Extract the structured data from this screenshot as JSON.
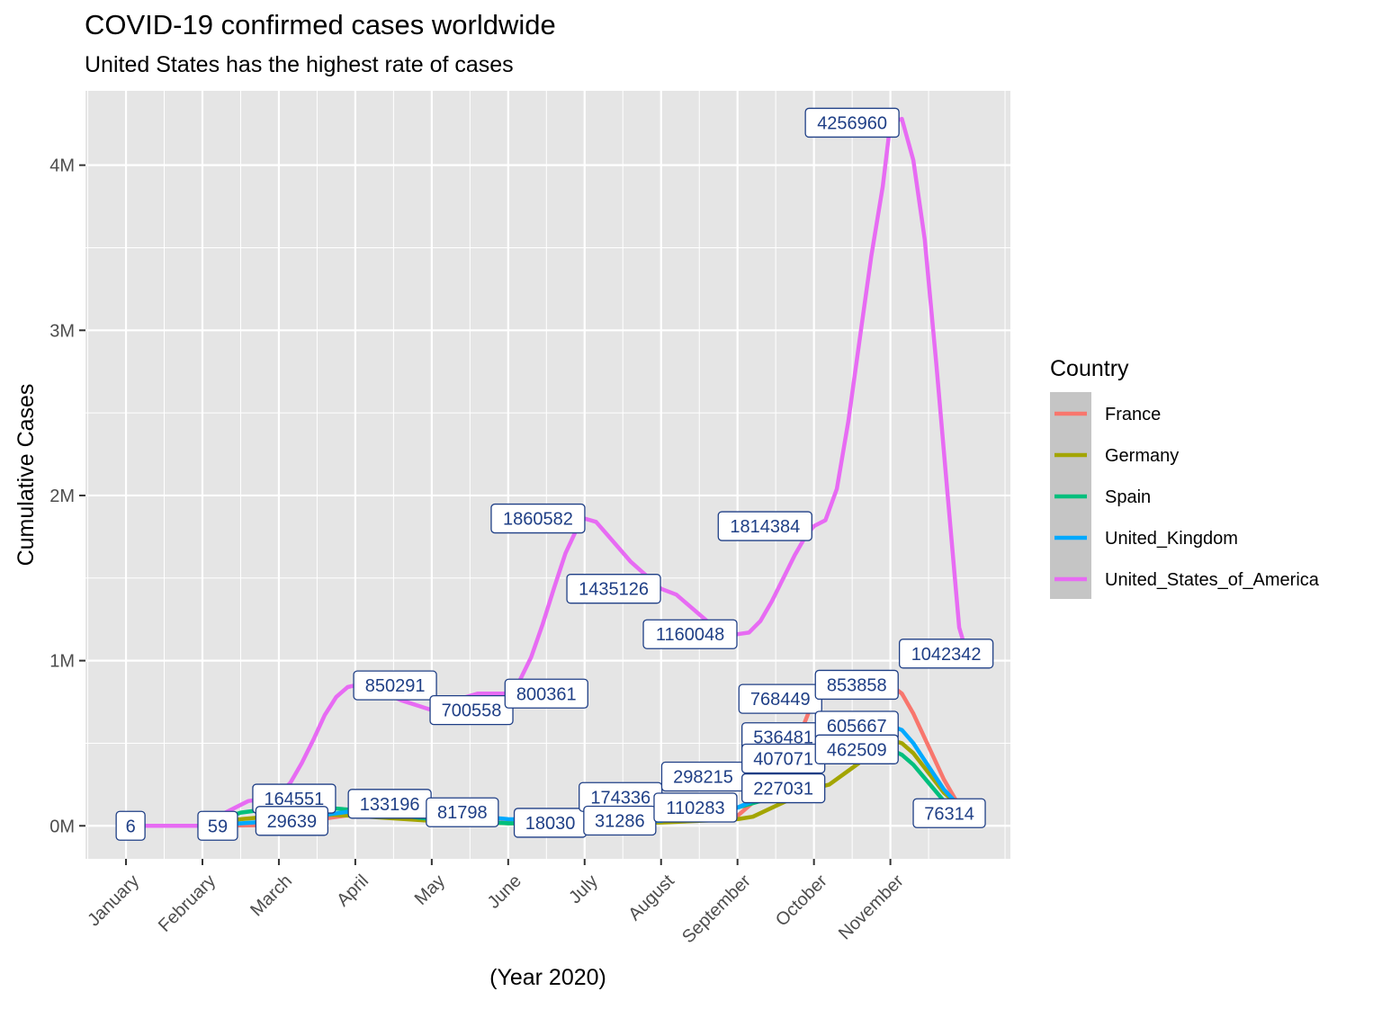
{
  "chart_data": {
    "type": "line",
    "title": "COVID-19 confirmed cases worldwide",
    "subtitle": "United States has the highest rate of cases",
    "xlabel": "(Year 2020)",
    "ylabel": "Cumulative Cases",
    "x_ticks": [
      "January",
      "February",
      "March",
      "April",
      "May",
      "June",
      "July",
      "August",
      "September",
      "October",
      "November"
    ],
    "y_ticks": [
      "0M",
      "1M",
      "2M",
      "3M",
      "4M"
    ],
    "y_tick_values": [
      0,
      1000000,
      2000000,
      3000000,
      4000000
    ],
    "ylim": [
      -200000,
      4450000
    ],
    "xlim": [
      0.47,
      12.57
    ],
    "legend_title": "Country",
    "legend_position": "right",
    "grid": true,
    "colors": {
      "panel_bg": "#e5e5e5",
      "grid": "#ffffff",
      "label_text": "#1f3f86",
      "label_border": "#1f3f86"
    },
    "series": [
      {
        "name": "France",
        "color": "#F8766D",
        "x": [
          1,
          2,
          3,
          4,
          5,
          6,
          7,
          8,
          9,
          9.6,
          10,
          10.5,
          11,
          11.15,
          11.3,
          11.5,
          11.7,
          11.9,
          12.0
        ],
        "y": [
          6,
          20,
          5000,
          70000,
          30000,
          18000,
          25000,
          35000,
          60000,
          300000,
          768449,
          830000,
          853858,
          800000,
          680000,
          480000,
          280000,
          120000,
          76314
        ]
      },
      {
        "name": "Germany",
        "color": "#A3A500",
        "x": [
          1,
          2,
          2.5,
          3,
          3.5,
          4,
          5,
          6,
          7,
          8,
          9,
          9.2,
          9.5,
          10,
          10.2,
          10.5,
          11,
          11.15,
          11.3,
          11.5,
          11.7,
          11.9,
          12.0
        ],
        "y": [
          0,
          10,
          40000,
          60000,
          70000,
          60000,
          30000,
          15000,
          12000,
          20000,
          40000,
          55000,
          120000,
          227031,
          250000,
          350000,
          520000,
          500000,
          440000,
          320000,
          200000,
          120000,
          80000
        ]
      },
      {
        "name": "Spain",
        "color": "#00BF7D",
        "x": [
          1,
          2,
          2.5,
          3,
          3.3,
          3.6,
          4,
          5,
          6,
          7,
          8,
          9,
          9.3,
          9.6,
          10,
          10.3,
          10.6,
          11,
          11.15,
          11.3,
          11.5,
          11.7,
          11.9,
          12.0
        ],
        "y": [
          0,
          5,
          80000,
          110000,
          120000,
          110000,
          95000,
          40000,
          15000,
          20000,
          60000,
          110283,
          150000,
          250000,
          407071,
          420000,
          440000,
          462509,
          430000,
          370000,
          260000,
          150000,
          90000,
          70000
        ]
      },
      {
        "name": "United_Kingdom",
        "color": "#00A9FF",
        "x": [
          1,
          2,
          2.5,
          3,
          3.5,
          4,
          4.3,
          4.7,
          5,
          6,
          7,
          8,
          9,
          9.3,
          9.6,
          10,
          10.3,
          10.6,
          11,
          11.15,
          11.3,
          11.5,
          11.7,
          11.9,
          12.0
        ],
        "y": [
          0,
          0,
          15000,
          29639,
          60000,
          90000,
          110000,
          100000,
          81798,
          40000,
          31286,
          30000,
          110283,
          170000,
          300000,
          536481,
          560000,
          590000,
          605667,
          580000,
          500000,
          360000,
          220000,
          120000,
          76314
        ]
      },
      {
        "name": "United_States_of_America",
        "color": "#E76BF3",
        "x": [
          1,
          2,
          2.3,
          2.6,
          2.85,
          3,
          3.15,
          3.3,
          3.45,
          3.6,
          3.75,
          3.9,
          4,
          4.3,
          4.6,
          5,
          5.3,
          5.6,
          6,
          6.15,
          6.3,
          6.45,
          6.6,
          6.75,
          6.9,
          7,
          7.15,
          7.3,
          7.6,
          8,
          8.2,
          8.4,
          8.6,
          8.8,
          9,
          9.15,
          9.3,
          9.45,
          9.6,
          9.75,
          9.9,
          10,
          10.15,
          10.3,
          10.45,
          10.6,
          10.75,
          10.9,
          11,
          11.15,
          11.3,
          11.45,
          11.6,
          11.75,
          11.9,
          12.0
        ],
        "y": [
          6,
          59,
          80000,
          150000,
          164551,
          190000,
          260000,
          380000,
          520000,
          670000,
          780000,
          840000,
          850291,
          820000,
          760000,
          700558,
          760000,
          800361,
          800361,
          880000,
          1020000,
          1220000,
          1440000,
          1650000,
          1800000,
          1860582,
          1840000,
          1760000,
          1600000,
          1435126,
          1400000,
          1320000,
          1240000,
          1180000,
          1160048,
          1170000,
          1240000,
          1360000,
          1500000,
          1640000,
          1760000,
          1814384,
          1850000,
          2040000,
          2450000,
          2950000,
          3450000,
          3870000,
          4256960,
          4280000,
          4030000,
          3550000,
          2800000,
          2000000,
          1200000,
          1042342
        ]
      }
    ],
    "annotations": [
      {
        "label": "6",
        "x": 1.06,
        "y": 6
      },
      {
        "label": "59",
        "x": 2.2,
        "y": 59
      },
      {
        "label": "164551",
        "x": 3.2,
        "y": 164551
      },
      {
        "label": "29639",
        "x": 3.17,
        "y": 29639
      },
      {
        "label": "850291",
        "x": 4.52,
        "y": 850291
      },
      {
        "label": "133196",
        "x": 4.45,
        "y": 133196
      },
      {
        "label": "700558",
        "x": 5.52,
        "y": 700558
      },
      {
        "label": "81798",
        "x": 5.4,
        "y": 81798
      },
      {
        "label": "800361",
        "x": 6.5,
        "y": 800361
      },
      {
        "label": "1860582",
        "x": 6.39,
        "y": 1860582
      },
      {
        "label": "18030",
        "x": 6.55,
        "y": 18030
      },
      {
        "label": "174336",
        "x": 7.47,
        "y": 174336
      },
      {
        "label": "31286",
        "x": 7.46,
        "y": 31286
      },
      {
        "label": "1435126",
        "x": 7.38,
        "y": 1435126
      },
      {
        "label": "1160048",
        "x": 8.38,
        "y": 1160048
      },
      {
        "label": "298215",
        "x": 8.55,
        "y": 298215
      },
      {
        "label": "110283",
        "x": 8.45,
        "y": 110283
      },
      {
        "label": "1814384",
        "x": 9.36,
        "y": 1814384
      },
      {
        "label": "768449",
        "x": 9.56,
        "y": 768449
      },
      {
        "label": "536481",
        "x": 9.6,
        "y": 536481
      },
      {
        "label": "407071",
        "x": 9.6,
        "y": 407071
      },
      {
        "label": "227031",
        "x": 9.6,
        "y": 227031
      },
      {
        "label": "853858",
        "x": 10.56,
        "y": 853858
      },
      {
        "label": "605667",
        "x": 10.56,
        "y": 605667
      },
      {
        "label": "462509",
        "x": 10.56,
        "y": 462509
      },
      {
        "label": "4256960",
        "x": 10.5,
        "y": 4256960
      },
      {
        "label": "1042342",
        "x": 11.73,
        "y": 1042342
      },
      {
        "label": "76314",
        "x": 11.77,
        "y": 76314
      }
    ]
  }
}
